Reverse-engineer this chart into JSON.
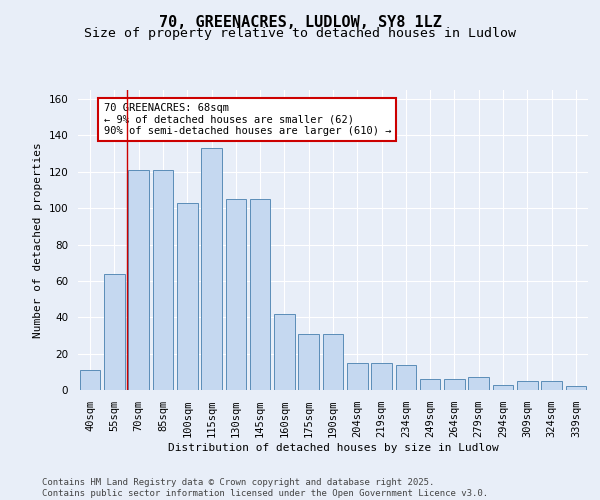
{
  "title_line1": "70, GREENACRES, LUDLOW, SY8 1LZ",
  "title_line2": "Size of property relative to detached houses in Ludlow",
  "xlabel": "Distribution of detached houses by size in Ludlow",
  "ylabel": "Number of detached properties",
  "categories": [
    "40sqm",
    "55sqm",
    "70sqm",
    "85sqm",
    "100sqm",
    "115sqm",
    "130sqm",
    "145sqm",
    "160sqm",
    "175sqm",
    "190sqm",
    "204sqm",
    "219sqm",
    "234sqm",
    "249sqm",
    "264sqm",
    "279sqm",
    "294sqm",
    "309sqm",
    "324sqm",
    "339sqm"
  ],
  "values": [
    11,
    64,
    121,
    121,
    103,
    133,
    105,
    105,
    42,
    31,
    31,
    15,
    15,
    14,
    6,
    6,
    7,
    3,
    5,
    5,
    2
  ],
  "bar_color": "#c5d8f0",
  "bar_edge_color": "#5b8db8",
  "background_color": "#e8eef8",
  "grid_color": "#ffffff",
  "vline_color": "#cc0000",
  "annotation_text": "70 GREENACRES: 68sqm\n← 9% of detached houses are smaller (62)\n90% of semi-detached houses are larger (610) →",
  "annotation_box_color": "#ffffff",
  "annotation_box_edge_color": "#cc0000",
  "ylim": [
    0,
    165
  ],
  "yticks": [
    0,
    20,
    40,
    60,
    80,
    100,
    120,
    140,
    160
  ],
  "footer_text": "Contains HM Land Registry data © Crown copyright and database right 2025.\nContains public sector information licensed under the Open Government Licence v3.0.",
  "title_fontsize": 11,
  "subtitle_fontsize": 9.5,
  "axis_label_fontsize": 8,
  "tick_fontsize": 7.5,
  "annotation_fontsize": 7.5,
  "footer_fontsize": 6.5
}
